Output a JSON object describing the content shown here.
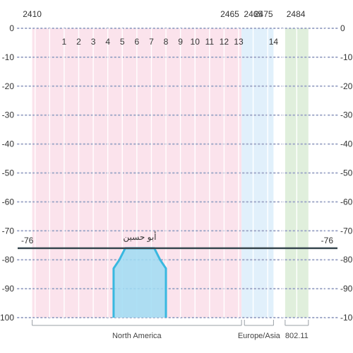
{
  "chart_data": {
    "type": "area",
    "title": "",
    "xlabel": "",
    "ylabel": "",
    "ylim": [
      -100,
      0
    ],
    "y_ticks": [
      "0",
      "-10",
      "-20",
      "-30",
      "-40",
      "-50",
      "-60",
      "-70",
      "-80",
      "-90",
      "-100"
    ],
    "grid": true,
    "frequency_labels": [
      "2410",
      "2465",
      "2465",
      "2475",
      "2484"
    ],
    "bands": [
      {
        "from": 2401,
        "to": 2473,
        "color": "#fbe3ec"
      },
      {
        "from": 2473,
        "to": 2484,
        "color": "#e1f0fb"
      },
      {
        "from": 2488,
        "to": 2496,
        "color": "#e0efdc"
      }
    ],
    "channels": [
      {
        "label": "1",
        "center": 2412
      },
      {
        "label": "2",
        "center": 2417
      },
      {
        "label": "3",
        "center": 2422
      },
      {
        "label": "4",
        "center": 2427
      },
      {
        "label": "5",
        "center": 2432
      },
      {
        "label": "6",
        "center": 2437
      },
      {
        "label": "7",
        "center": 2442
      },
      {
        "label": "8",
        "center": 2447
      },
      {
        "label": "9",
        "center": 2452
      },
      {
        "label": "10",
        "center": 2457
      },
      {
        "label": "11",
        "center": 2462
      },
      {
        "label": "12",
        "center": 2467
      },
      {
        "label": "13",
        "center": 2472
      },
      {
        "label": "14",
        "center": 2484
      }
    ],
    "regions": [
      {
        "label": "North America",
        "from": 2401,
        "to": 2473
      },
      {
        "label": "Europe/Asia",
        "from": 2474,
        "to": 2484
      },
      {
        "label": "802.11",
        "from": 2488,
        "to": 2496
      }
    ],
    "threshold": {
      "value": -76,
      "label": "-76",
      "color": "#37474f"
    },
    "series": [
      {
        "name": "أبو حسين",
        "color": "#39b8e0",
        "fill": "#9fdcf3",
        "x": [
          2429,
          2429,
          2431,
          2433,
          2443,
          2445,
          2447,
          2447
        ],
        "y": [
          -100,
          -83,
          -80,
          -76,
          -76,
          -80,
          -83,
          -100
        ]
      }
    ]
  },
  "colors": {
    "grid": "#9fa8c8",
    "accent": "#39b8e0"
  }
}
